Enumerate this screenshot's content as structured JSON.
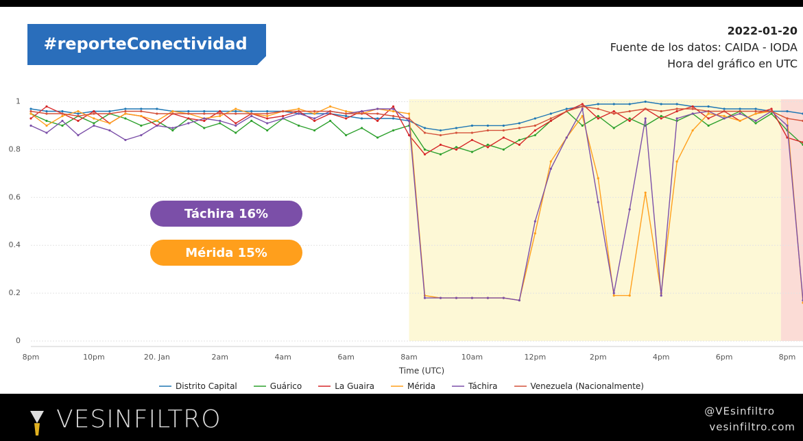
{
  "header": {
    "hashtag": "#reporteConectividad",
    "date": "2022-01-20",
    "source": "Fuente de los datos: CAIDA - IODA",
    "note": "Hora del gráfico en UTC"
  },
  "footer": {
    "brand": "VESINFILTRO",
    "handle": "@VEsinfiltro",
    "site": "vesinfiltro.com"
  },
  "chart_data": {
    "type": "line",
    "x_label": "Time (UTC)",
    "annotations": [
      "Táchira 16%",
      "Mérida 15%"
    ],
    "categories": [
      "8pm",
      null,
      null,
      null,
      "10pm",
      null,
      null,
      null,
      "20. Jan",
      null,
      null,
      null,
      "2am",
      null,
      null,
      null,
      "4am",
      null,
      null,
      null,
      "6am",
      null,
      null,
      null,
      "8am",
      null,
      null,
      null,
      "10am",
      null,
      null,
      null,
      "12pm",
      null,
      null,
      null,
      "2pm",
      null,
      null,
      null,
      "4pm",
      null,
      null,
      null,
      "6pm",
      null,
      null,
      null,
      "8pm",
      null
    ],
    "ylim": [
      0,
      1.01
    ],
    "yticks": [
      0,
      0.2,
      0.4,
      0.6,
      0.8,
      1
    ],
    "grid": true,
    "series": [
      {
        "name": "Distrito Capital",
        "color": "#1f77b4",
        "values": [
          0.97,
          0.96,
          0.96,
          0.95,
          0.96,
          0.96,
          0.97,
          0.97,
          0.97,
          0.96,
          0.96,
          0.96,
          0.96,
          0.96,
          0.96,
          0.96,
          0.96,
          0.95,
          0.95,
          0.95,
          0.94,
          0.93,
          0.93,
          0.93,
          0.92,
          0.89,
          0.88,
          0.89,
          0.9,
          0.9,
          0.9,
          0.91,
          0.93,
          0.95,
          0.97,
          0.98,
          0.99,
          0.99,
          0.99,
          1.0,
          0.99,
          0.99,
          0.98,
          0.98,
          0.97,
          0.97,
          0.97,
          0.96,
          0.96,
          0.95
        ]
      },
      {
        "name": "Guárico",
        "color": "#2ca02c",
        "values": [
          0.95,
          0.92,
          0.9,
          0.94,
          0.91,
          0.95,
          0.93,
          0.9,
          0.92,
          0.88,
          0.93,
          0.89,
          0.91,
          0.87,
          0.92,
          0.88,
          0.93,
          0.9,
          0.88,
          0.92,
          0.86,
          0.89,
          0.85,
          0.88,
          0.9,
          0.8,
          0.78,
          0.81,
          0.79,
          0.82,
          0.8,
          0.84,
          0.86,
          0.92,
          0.96,
          0.9,
          0.94,
          0.89,
          0.93,
          0.9,
          0.94,
          0.92,
          0.95,
          0.9,
          0.93,
          0.96,
          0.91,
          0.95,
          0.88,
          0.82
        ]
      },
      {
        "name": "La Guaira",
        "color": "#d62728",
        "values": [
          0.93,
          0.98,
          0.95,
          0.92,
          0.96,
          0.91,
          0.95,
          0.94,
          0.9,
          0.95,
          0.93,
          0.92,
          0.96,
          0.91,
          0.95,
          0.93,
          0.94,
          0.96,
          0.92,
          0.95,
          0.93,
          0.96,
          0.92,
          0.98,
          0.86,
          0.78,
          0.82,
          0.8,
          0.84,
          0.81,
          0.85,
          0.82,
          0.88,
          0.92,
          0.96,
          0.99,
          0.93,
          0.96,
          0.92,
          0.97,
          0.93,
          0.96,
          0.98,
          0.93,
          0.96,
          0.92,
          0.95,
          0.97,
          0.85,
          0.83
        ]
      },
      {
        "name": "Mérida",
        "color": "#ff9f1c",
        "values": [
          0.95,
          0.9,
          0.94,
          0.96,
          0.93,
          0.91,
          0.95,
          0.94,
          0.92,
          0.96,
          0.95,
          0.93,
          0.94,
          0.97,
          0.95,
          0.94,
          0.96,
          0.97,
          0.95,
          0.98,
          0.96,
          0.95,
          0.97,
          0.96,
          0.95,
          0.19,
          0.18,
          0.18,
          0.18,
          0.18,
          0.18,
          0.17,
          0.45,
          0.75,
          0.85,
          0.94,
          0.68,
          0.19,
          0.19,
          0.62,
          0.2,
          0.75,
          0.88,
          0.95,
          0.94,
          0.92,
          0.95,
          0.96,
          0.93,
          0.16
        ]
      },
      {
        "name": "Táchira",
        "color": "#7b4fa8",
        "values": [
          0.9,
          0.87,
          0.92,
          0.86,
          0.9,
          0.88,
          0.84,
          0.86,
          0.9,
          0.89,
          0.91,
          0.93,
          0.92,
          0.9,
          0.94,
          0.91,
          0.93,
          0.95,
          0.93,
          0.96,
          0.95,
          0.96,
          0.97,
          0.97,
          0.92,
          0.18,
          0.18,
          0.18,
          0.18,
          0.18,
          0.18,
          0.17,
          0.5,
          0.72,
          0.85,
          0.97,
          0.58,
          0.2,
          0.55,
          0.93,
          0.19,
          0.93,
          0.95,
          0.96,
          0.93,
          0.95,
          0.92,
          0.96,
          0.9,
          0.17
        ]
      },
      {
        "name": "Venezuela (Nacionalmente)",
        "color": "#d4513a",
        "values": [
          0.96,
          0.95,
          0.95,
          0.94,
          0.95,
          0.95,
          0.96,
          0.96,
          0.95,
          0.95,
          0.95,
          0.95,
          0.95,
          0.95,
          0.95,
          0.95,
          0.96,
          0.96,
          0.96,
          0.96,
          0.95,
          0.95,
          0.95,
          0.94,
          0.93,
          0.87,
          0.86,
          0.87,
          0.87,
          0.88,
          0.88,
          0.89,
          0.9,
          0.93,
          0.96,
          0.98,
          0.97,
          0.95,
          0.96,
          0.97,
          0.96,
          0.97,
          0.97,
          0.96,
          0.96,
          0.96,
          0.96,
          0.96,
          0.93,
          0.92
        ]
      }
    ]
  }
}
